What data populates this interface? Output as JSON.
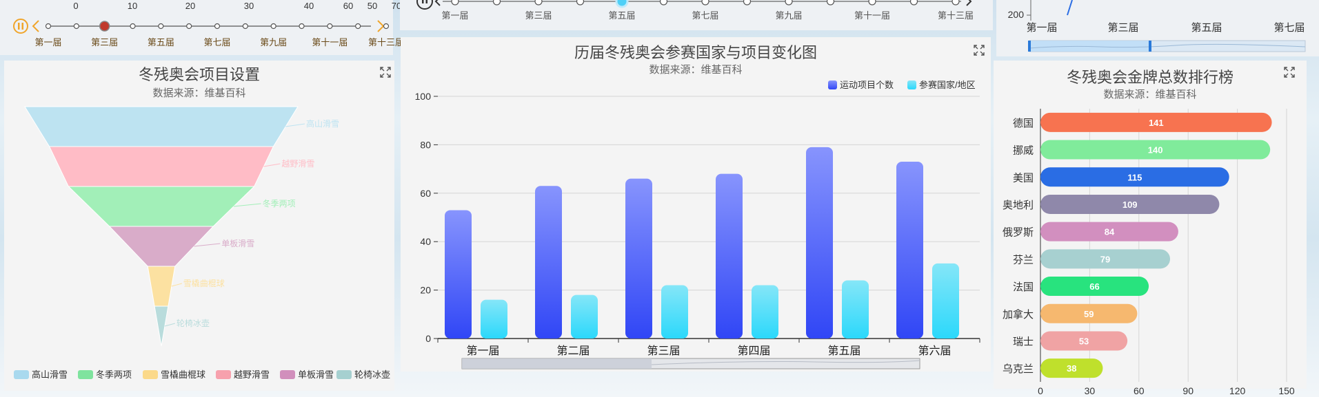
{
  "timeline_left": {
    "scale_ticks": [
      "0",
      "10",
      "20",
      "30",
      "40",
      "60",
      "50",
      "70"
    ],
    "labels": [
      "第一届",
      "第三届",
      "第五届",
      "第七届",
      "第九届",
      "第十一届",
      "第十三届"
    ]
  },
  "timeline_mid": {
    "labels": [
      "第一届",
      "第三届",
      "第五届",
      "第七届",
      "第九届",
      "第十一届",
      "第十三届"
    ]
  },
  "line_mini": {
    "y_tick": "200",
    "x_labels": [
      "第一届",
      "第三届",
      "第五届",
      "第七届"
    ]
  },
  "funnel": {
    "title": "冬残奥会项目设置",
    "subtitle": "数据来源：维基百科",
    "chart_data": {
      "type": "funnel",
      "categories": [
        "高山滑雪",
        "越野滑雪",
        "冬季两项",
        "单板滑雪",
        "雪橇曲棍球",
        "轮椅冰壶"
      ],
      "values": [
        100,
        82,
        68,
        38,
        10,
        5
      ],
      "colors": [
        "#bde3f1",
        "#ffbcc6",
        "#a2efb8",
        "#d9acc9",
        "#fce1a1",
        "#b9dcdc"
      ]
    },
    "legend": [
      {
        "label": "高山滑雪",
        "color": "#a9d9ee"
      },
      {
        "label": "冬季两项",
        "color": "#7fe39e"
      },
      {
        "label": "雪橇曲棍球",
        "color": "#fbd98a"
      },
      {
        "label": "越野滑雪",
        "color": "#f7a1ad"
      },
      {
        "label": "单板滑雪",
        "color": "#d18fbc"
      },
      {
        "label": "轮椅冰壶",
        "color": "#a6d0d0"
      }
    ]
  },
  "bar_main": {
    "title": "历届冬残奥会参赛国家与项目变化图",
    "subtitle": "数据来源：维基百科",
    "chart_data": {
      "type": "bar",
      "categories": [
        "第一届",
        "第二届",
        "第三届",
        "第四届",
        "第五届",
        "第六届"
      ],
      "series": [
        {
          "name": "运动项目个数",
          "values": [
            53,
            63,
            66,
            68,
            79,
            73
          ],
          "color_top": "#8794fd",
          "color_bottom": "#3046f6"
        },
        {
          "name": "参赛国家/地区",
          "values": [
            16,
            18,
            22,
            22,
            24,
            31
          ],
          "color_top": "#85e6f8",
          "color_bottom": "#2bd8fb"
        }
      ],
      "y_ticks": [
        "0",
        "20",
        "40",
        "60",
        "80",
        "100"
      ],
      "ylim": [
        0,
        100
      ],
      "legend_position": "top-right"
    }
  },
  "medal": {
    "title": "冬残奥会金牌总数排行榜",
    "subtitle": "数据来源：维基百科",
    "chart_data": {
      "type": "bar",
      "orientation": "horizontal",
      "categories": [
        "德国",
        "挪威",
        "美国",
        "奥地利",
        "俄罗斯",
        "芬兰",
        "法国",
        "加拿大",
        "瑞士",
        "乌克兰"
      ],
      "values": [
        141,
        140,
        115,
        109,
        84,
        79,
        66,
        59,
        53,
        38
      ],
      "value_labels": [
        "141",
        "140",
        "115",
        "109",
        "84",
        "79",
        "66",
        "59",
        "53",
        "38"
      ],
      "colors": [
        "#f77350",
        "#80eb9b",
        "#2a6de4",
        "#8f88aa",
        "#d28fbf",
        "#a7d0d0",
        "#28e37e",
        "#f6b86f",
        "#f0a3a4",
        "#bfe02c"
      ],
      "x_ticks": [
        "0",
        "30",
        "60",
        "90",
        "120",
        "150"
      ],
      "xlim": [
        0,
        150
      ]
    }
  }
}
